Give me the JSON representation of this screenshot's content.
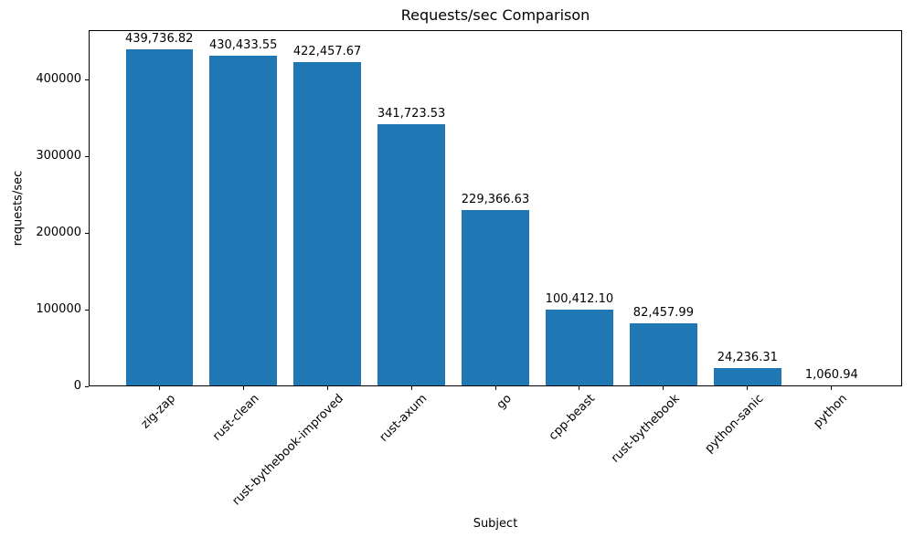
{
  "chart_data": {
    "type": "bar",
    "title": "Requests/sec Comparison",
    "xlabel": "Subject",
    "ylabel": "requests/sec",
    "categories": [
      "zig-zap",
      "rust-clean",
      "rust-bythebook-improved",
      "rust-axum",
      "go",
      "cpp-beast",
      "rust-bythebook",
      "python-sanic",
      "python"
    ],
    "values": [
      439736.82,
      430433.55,
      422457.67,
      341723.53,
      229366.63,
      100412.1,
      82457.99,
      24236.31,
      1060.94
    ],
    "value_labels": [
      "439,736.82",
      "430,433.55",
      "422,457.67",
      "341,723.53",
      "229,366.63",
      "100,412.10",
      "82,457.99",
      "24,236.31",
      "1,060.94"
    ],
    "yticks": [
      0,
      100000,
      200000,
      300000,
      400000
    ],
    "ytick_labels": [
      "0",
      "100000",
      "200000",
      "300000",
      "400000"
    ],
    "ylim": [
      0,
      464286
    ],
    "bar_color": "#1f77b4",
    "bar_rel_width": 0.8,
    "grid": false,
    "legend": null
  }
}
